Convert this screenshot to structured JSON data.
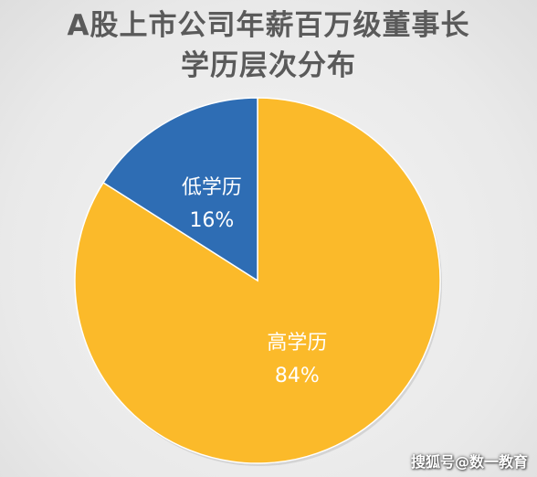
{
  "chart_data": {
    "type": "pie",
    "title_lines": [
      "A股上市公司年薪百万级董事长",
      "学历层次分布"
    ],
    "slices": [
      {
        "name": "高学历",
        "value": 84,
        "label": "84%",
        "color": "#FBBA2A"
      },
      {
        "name": "低学历",
        "value": 16,
        "label": "16%",
        "color": "#2E6DB4"
      }
    ],
    "start_angle_deg": 0,
    "direction": "clockwise"
  },
  "watermark": "搜狐号@数一教育"
}
